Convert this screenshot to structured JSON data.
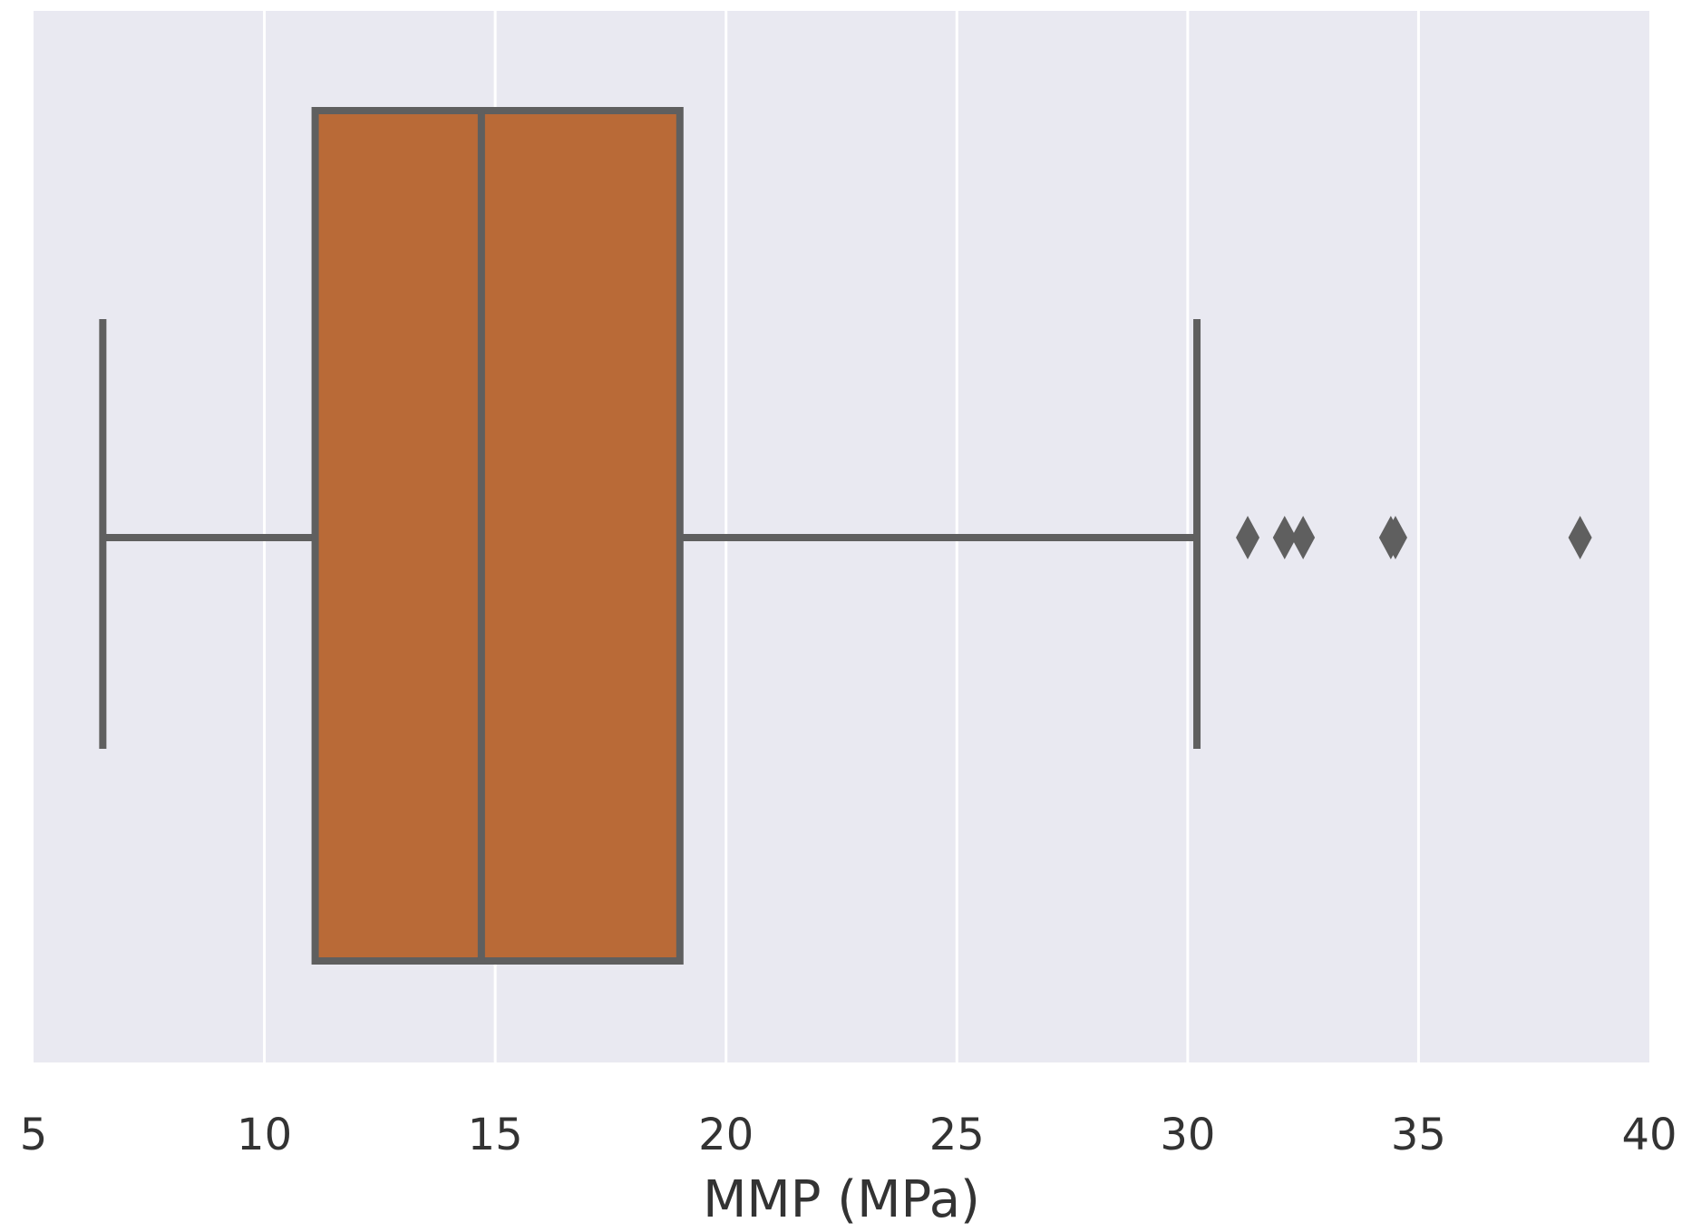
{
  "chart_data": {
    "type": "boxplot",
    "orientation": "horizontal",
    "xlabel": "MMP (MPa)",
    "ylabel": "",
    "title": "",
    "xlim": [
      5,
      40
    ],
    "xticks": [
      5,
      10,
      15,
      20,
      25,
      30,
      35,
      40
    ],
    "grid": true,
    "series": [
      {
        "min": 6.5,
        "q1": 11.1,
        "median": 14.7,
        "q3": 19.0,
        "max": 30.2,
        "outliers": [
          31.3,
          32.1,
          32.5,
          34.4,
          34.5,
          38.5
        ]
      }
    ],
    "colors": {
      "box_fill": "#b96a37",
      "line": "#5f5f5f",
      "plot_background": "#e9e9f1",
      "grid": "#ffffff",
      "text": "#333333"
    }
  }
}
